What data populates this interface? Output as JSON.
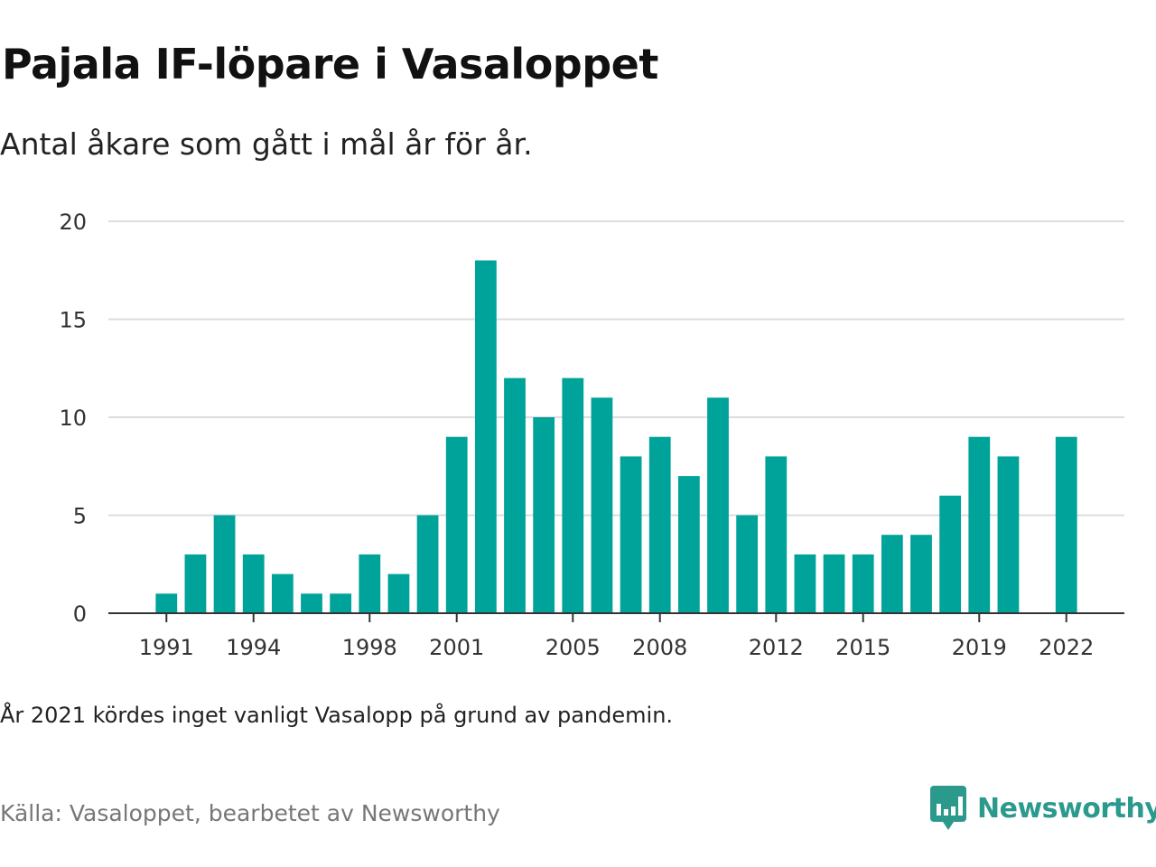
{
  "title": "Pajala IF-löpare i Vasaloppet",
  "subtitle": "Antal åkare som gått i mål år för år.",
  "note": "År 2021 kördes inget vanligt Vasalopp på grund av pandemin.",
  "source": "Källa: Vasaloppet, bearbetet av Newsworthy",
  "logo": {
    "text": "Newsworthy",
    "icon": "newsworthy-logo-icon",
    "color": "#2b9a8c"
  },
  "chart_data": {
    "type": "bar",
    "title": "Pajala IF-löpare i Vasaloppet",
    "xlabel": "",
    "ylabel": "",
    "bar_color": "#00a39a",
    "grid": true,
    "ylim": [
      0,
      20
    ],
    "yticks": [
      0,
      5,
      10,
      15,
      20
    ],
    "xticks": [
      1991,
      1994,
      1998,
      2001,
      2005,
      2008,
      2012,
      2015,
      2019,
      2022
    ],
    "xlim": [
      1989,
      2024
    ],
    "categories": [
      1991,
      1992,
      1993,
      1994,
      1995,
      1996,
      1997,
      1998,
      1999,
      2000,
      2001,
      2002,
      2003,
      2004,
      2005,
      2006,
      2007,
      2008,
      2009,
      2010,
      2011,
      2012,
      2013,
      2014,
      2015,
      2016,
      2017,
      2018,
      2019,
      2020,
      2021,
      2022
    ],
    "values": [
      1,
      3,
      5,
      3,
      2,
      1,
      1,
      3,
      2,
      5,
      9,
      18,
      12,
      10,
      12,
      11,
      8,
      9,
      7,
      11,
      5,
      8,
      3,
      3,
      3,
      4,
      4,
      6,
      9,
      8,
      null,
      9
    ]
  }
}
